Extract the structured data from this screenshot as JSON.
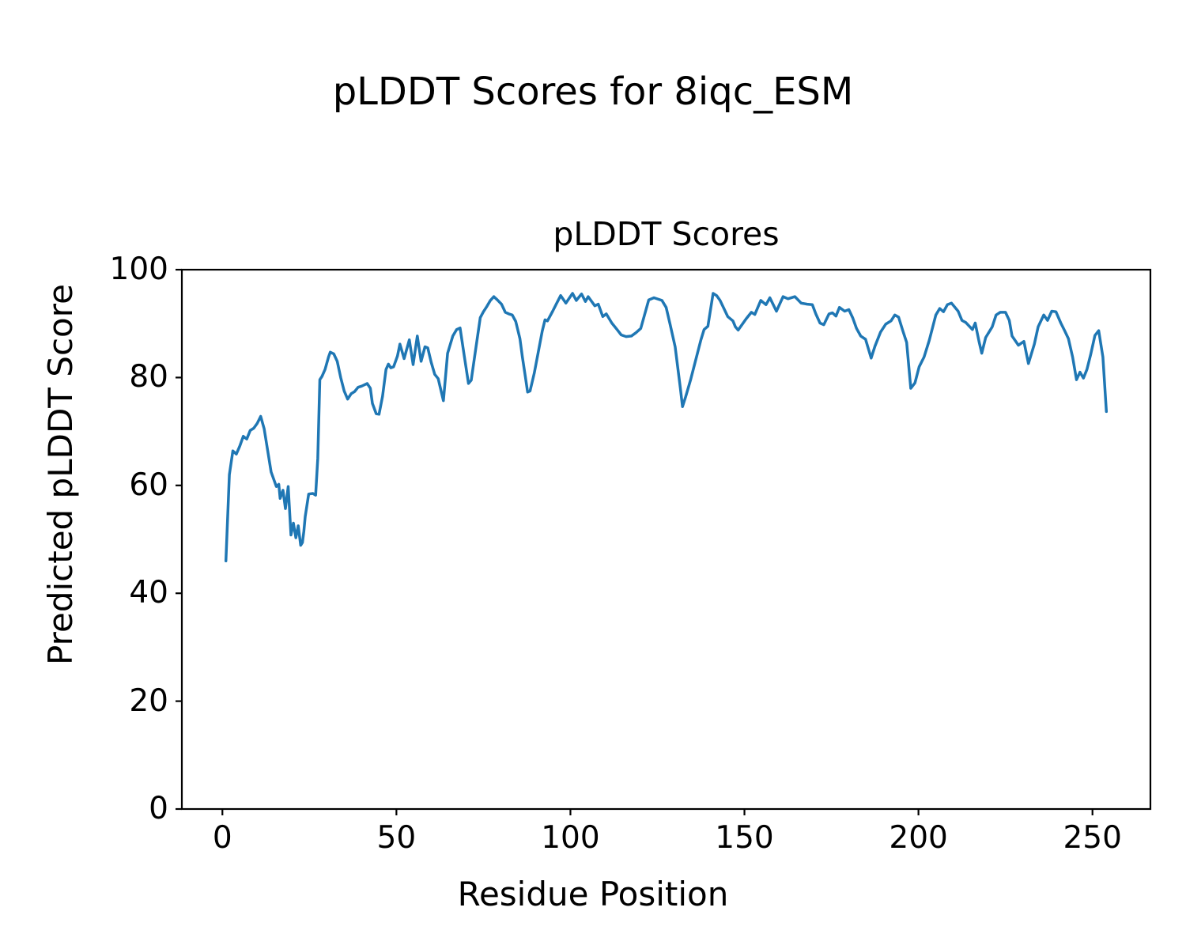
{
  "figure": {
    "suptitle": "pLDDT Scores for 8iqc_ESM",
    "background_color": "#ffffff",
    "text_color": "#000000"
  },
  "chart_data": {
    "type": "line",
    "title": "pLDDT Scores",
    "xlabel": "Residue Position",
    "ylabel": "Predicted pLDDT Score",
    "xlim": [
      -11.65,
      266.65
    ],
    "ylim": [
      0,
      100
    ],
    "x_ticks": [
      0,
      50,
      100,
      150,
      200,
      250
    ],
    "y_ticks": [
      0,
      20,
      40,
      60,
      80,
      100
    ],
    "grid": false,
    "legend": "none",
    "line_color": "#1f77b4",
    "line_width": 3.5,
    "spine_color": "#000000",
    "series": [
      {
        "name": "pLDDT score per residue",
        "points": [
          [
            1,
            46
          ],
          [
            2,
            62
          ],
          [
            3,
            66.4
          ],
          [
            4,
            65.8
          ],
          [
            5,
            67.3
          ],
          [
            6,
            69.1
          ],
          [
            7,
            68.6
          ],
          [
            8,
            70.2
          ],
          [
            9,
            70.6
          ],
          [
            10,
            71.5
          ],
          [
            11,
            72.8
          ],
          [
            12,
            70.5
          ],
          [
            13,
            66.5
          ],
          [
            14,
            62.5
          ],
          [
            15.5,
            59.8
          ],
          [
            16.2,
            60.2
          ],
          [
            16.6,
            57.6
          ],
          [
            17.4,
            59.1
          ],
          [
            18.1,
            55.7
          ],
          [
            18.9,
            59.8
          ],
          [
            19.7,
            50.8
          ],
          [
            20.4,
            53
          ],
          [
            21.1,
            50.3
          ],
          [
            21.8,
            52.5
          ],
          [
            22.5,
            48.9
          ],
          [
            23,
            49.4
          ],
          [
            23.4,
            51.5
          ],
          [
            23.8,
            54.2
          ],
          [
            24.8,
            58.4
          ],
          [
            26,
            58.5
          ],
          [
            26.8,
            58.2
          ],
          [
            27.4,
            65
          ],
          [
            28,
            79.6
          ],
          [
            28.6,
            80.2
          ],
          [
            29.5,
            81.5
          ],
          [
            30.5,
            83.8
          ],
          [
            31,
            84.7
          ],
          [
            32,
            84.4
          ],
          [
            33,
            83
          ],
          [
            34,
            80
          ],
          [
            35,
            77.5
          ],
          [
            36,
            76
          ],
          [
            37,
            77
          ],
          [
            38,
            77.4
          ],
          [
            39,
            78.2
          ],
          [
            40,
            78.4
          ],
          [
            41.6,
            78.9
          ],
          [
            42.5,
            78
          ],
          [
            43.1,
            75.2
          ],
          [
            44.2,
            73.3
          ],
          [
            45,
            73.2
          ],
          [
            46,
            76.5
          ],
          [
            47,
            81.5
          ],
          [
            47.7,
            82.5
          ],
          [
            48.4,
            81.8
          ],
          [
            49.2,
            82
          ],
          [
            50.3,
            84
          ],
          [
            51,
            86.2
          ],
          [
            52.2,
            83.5
          ],
          [
            53.7,
            87
          ],
          [
            54.8,
            82.4
          ],
          [
            56,
            87.7
          ],
          [
            57.1,
            83
          ],
          [
            58.2,
            85.7
          ],
          [
            59,
            85.5
          ],
          [
            60,
            82.8
          ],
          [
            61,
            80.6
          ],
          [
            62,
            79.8
          ],
          [
            63.5,
            75.7
          ],
          [
            64.7,
            84.5
          ],
          [
            66.2,
            87.7
          ],
          [
            67.3,
            88.9
          ],
          [
            68.3,
            89.2
          ],
          [
            69.5,
            84
          ],
          [
            70.7,
            78.9
          ],
          [
            71.5,
            79.5
          ],
          [
            72.5,
            84
          ],
          [
            74.1,
            91.1
          ],
          [
            75,
            92.2
          ],
          [
            76,
            93.2
          ],
          [
            77,
            94.3
          ],
          [
            78,
            95
          ],
          [
            79,
            94.4
          ],
          [
            80.2,
            93.6
          ],
          [
            81.3,
            92.1
          ],
          [
            82.3,
            91.8
          ],
          [
            83.3,
            91.6
          ],
          [
            84.3,
            90.4
          ],
          [
            85.5,
            87.2
          ],
          [
            86.2,
            83.8
          ],
          [
            87,
            80.4
          ],
          [
            87.7,
            77.3
          ],
          [
            88.4,
            77.5
          ],
          [
            89.6,
            80.8
          ],
          [
            90.7,
            84.5
          ],
          [
            91.9,
            88.6
          ],
          [
            92.7,
            90.7
          ],
          [
            93.4,
            90.5
          ],
          [
            94.9,
            92.3
          ],
          [
            96,
            93.7
          ],
          [
            97.2,
            95.2
          ],
          [
            98.7,
            93.8
          ],
          [
            100.6,
            95.6
          ],
          [
            101.7,
            94.3
          ],
          [
            103.2,
            95.5
          ],
          [
            104.3,
            94.1
          ],
          [
            105.1,
            95
          ],
          [
            107,
            93.3
          ],
          [
            108,
            93.6
          ],
          [
            109.3,
            91.3
          ],
          [
            110.3,
            91.8
          ],
          [
            111.9,
            90.1
          ],
          [
            113.4,
            88.9
          ],
          [
            114.6,
            87.9
          ],
          [
            116,
            87.6
          ],
          [
            117.5,
            87.7
          ],
          [
            118.8,
            88.3
          ],
          [
            120.2,
            89.1
          ],
          [
            122.5,
            94.4
          ],
          [
            124,
            94.8
          ],
          [
            126.3,
            94.3
          ],
          [
            127.5,
            93
          ],
          [
            128.6,
            90
          ],
          [
            130.1,
            85.7
          ],
          [
            131.6,
            78
          ],
          [
            132.2,
            74.6
          ],
          [
            133.1,
            76.4
          ],
          [
            134.5,
            79.5
          ],
          [
            136.5,
            84.5
          ],
          [
            137.5,
            87
          ],
          [
            138.4,
            88.9
          ],
          [
            139.5,
            89.5
          ],
          [
            141,
            95.6
          ],
          [
            142,
            95.2
          ],
          [
            143,
            94.3
          ],
          [
            144.1,
            92.8
          ],
          [
            145.2,
            91.3
          ],
          [
            146.7,
            90.5
          ],
          [
            147.4,
            89.4
          ],
          [
            148.2,
            88.8
          ],
          [
            150.5,
            90.9
          ],
          [
            152,
            92.1
          ],
          [
            153,
            91.7
          ],
          [
            154.7,
            94.3
          ],
          [
            156.2,
            93.5
          ],
          [
            157.3,
            94.8
          ],
          [
            159.2,
            92.3
          ],
          [
            161.1,
            95
          ],
          [
            162.5,
            94.6
          ],
          [
            164.5,
            95
          ],
          [
            166.3,
            93.8
          ],
          [
            168,
            93.6
          ],
          [
            169.5,
            93.5
          ],
          [
            170.5,
            91.8
          ],
          [
            171.7,
            90.1
          ],
          [
            172.8,
            89.8
          ],
          [
            174.3,
            91.8
          ],
          [
            175.3,
            92
          ],
          [
            176.3,
            91.4
          ],
          [
            177.3,
            93
          ],
          [
            178.8,
            92.3
          ],
          [
            180,
            92.6
          ],
          [
            181.1,
            91.1
          ],
          [
            182.2,
            89.1
          ],
          [
            183.4,
            87.7
          ],
          [
            184.8,
            87.1
          ],
          [
            186.4,
            83.6
          ],
          [
            187.5,
            85.8
          ],
          [
            189.1,
            88.4
          ],
          [
            190.6,
            89.9
          ],
          [
            192.1,
            90.5
          ],
          [
            193.2,
            91.6
          ],
          [
            194.3,
            91.2
          ],
          [
            195.5,
            88.7
          ],
          [
            196.6,
            86.5
          ],
          [
            197.8,
            78
          ],
          [
            199,
            79
          ],
          [
            200.2,
            82
          ],
          [
            201.6,
            83.8
          ],
          [
            203.1,
            86.9
          ],
          [
            205,
            91.6
          ],
          [
            206.1,
            92.8
          ],
          [
            207.2,
            92.2
          ],
          [
            208.3,
            93.5
          ],
          [
            209.5,
            93.8
          ],
          [
            211.4,
            92.3
          ],
          [
            212.5,
            90.6
          ],
          [
            213.6,
            90.2
          ],
          [
            215.5,
            88.9
          ],
          [
            216.3,
            90.1
          ],
          [
            217.4,
            86.7
          ],
          [
            218.2,
            84.5
          ],
          [
            219.3,
            87.4
          ],
          [
            221.2,
            89.4
          ],
          [
            222.3,
            91.6
          ],
          [
            223.5,
            92.1
          ],
          [
            225,
            92.1
          ],
          [
            226.1,
            90.6
          ],
          [
            226.9,
            87.7
          ],
          [
            228.7,
            86
          ],
          [
            230.3,
            86.7
          ],
          [
            231.6,
            82.6
          ],
          [
            233.3,
            86.2
          ],
          [
            234.4,
            89.4
          ],
          [
            236,
            91.6
          ],
          [
            237.1,
            90.6
          ],
          [
            238.3,
            92.3
          ],
          [
            239.5,
            92.2
          ],
          [
            240.9,
            90.1
          ],
          [
            242,
            88.7
          ],
          [
            243.1,
            87.2
          ],
          [
            244.3,
            83.8
          ],
          [
            245.4,
            79.6
          ],
          [
            246.4,
            81
          ],
          [
            247.4,
            79.9
          ],
          [
            248.4,
            81.5
          ],
          [
            249.5,
            84.3
          ],
          [
            250.7,
            87.8
          ],
          [
            251.8,
            88.7
          ],
          [
            253,
            83.8
          ],
          [
            254,
            73.7
          ]
        ]
      }
    ]
  }
}
